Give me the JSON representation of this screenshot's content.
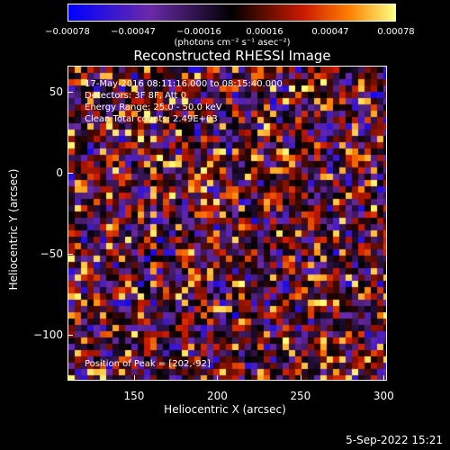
{
  "chart_data": {
    "type": "heatmap",
    "title": "Reconstructed RHESSI Image",
    "xlabel": "Heliocentric X (arcsec)",
    "ylabel": "Heliocentric Y (arcsec)",
    "xlim": [
      110,
      302
    ],
    "ylim": [
      -128,
      66
    ],
    "xticks": [
      150,
      200,
      250,
      300
    ],
    "yticks": [
      50,
      0,
      -50,
      -100
    ],
    "xtick_labels": [
      "150",
      "200",
      "250",
      "300"
    ],
    "ytick_labels": [
      "50",
      "0",
      "−50",
      "−100"
    ],
    "colorbar": {
      "ticks": [
        "−0.00078",
        "−0.00047",
        "−0.00016",
        "0.00016",
        "0.00047",
        "0.00078"
      ],
      "range": [
        -0.00078,
        0.00078
      ],
      "unit": "(photons cm⁻² s⁻¹ asec⁻²)"
    },
    "annotations": {
      "time": "17-May-2016 08:11:16.000 to 08:15:40.000",
      "detectors": "Detectors: 3F 8F, Att 0",
      "energy": "Energy Range: 25.0 - 50.0 keV",
      "clean": "Clean     Total counts: 2.49E+03",
      "peak": "Position of Peak = [202,-92]"
    },
    "colors": {
      "low": "#0000ff",
      "mid_low": "#6a2aa8",
      "mid": "#000000",
      "mid_high": "#cc1a00",
      "high": "#ffff80"
    }
  },
  "timestamp": "5-Sep-2022 15:21"
}
